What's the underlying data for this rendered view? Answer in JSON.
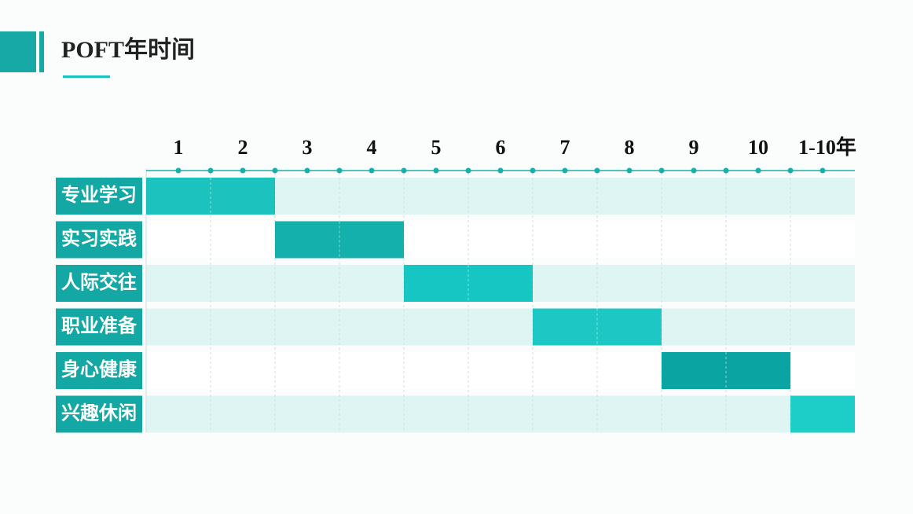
{
  "header": {
    "title": "POFT年时间"
  },
  "timeline": {
    "columns": [
      "1",
      "2",
      "3",
      "4",
      "5",
      "6",
      "7",
      "8",
      "9",
      "10",
      "1-10年"
    ],
    "rows": [
      {
        "label": "专业学习",
        "columns": [
          "1",
          "2"
        ],
        "color": "#1cc2be"
      },
      {
        "label": "实习实践",
        "columns": [
          "3",
          "4"
        ],
        "color": "#13b0ac"
      },
      {
        "label": "人际交往",
        "columns": [
          "5",
          "6"
        ],
        "color": "#16c6c2"
      },
      {
        "label": "职业准备",
        "columns": [
          "7",
          "8"
        ],
        "color": "#1dc7c3"
      },
      {
        "label": "身心健康",
        "columns": [
          "9",
          "10"
        ],
        "color": "#0aa5a2"
      },
      {
        "label": "兴趣休闲",
        "columns": [
          "1-10年"
        ],
        "color": "#1ccdc8"
      }
    ]
  }
}
